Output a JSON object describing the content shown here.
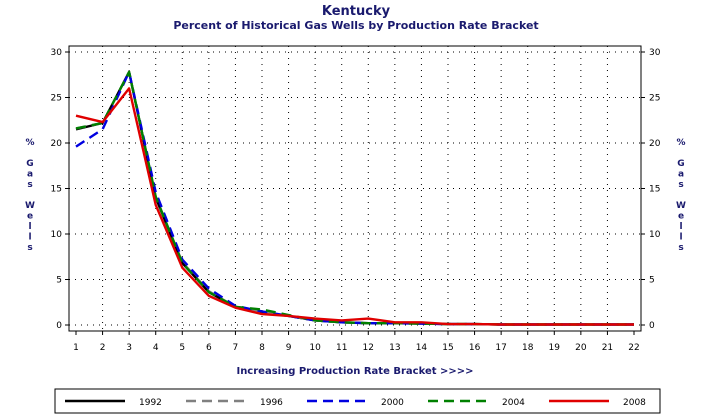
{
  "chart_data": {
    "type": "line",
    "title": "Kentucky",
    "subtitle": "Percent of Historical Gas Wells by Production Rate Bracket",
    "xlabel": "Increasing Production Rate Bracket >>>>",
    "ylabel": "% Gas Wells",
    "ylim": [
      0,
      30
    ],
    "yticks": [
      "0",
      "5",
      "10",
      "15",
      "20",
      "25",
      "30"
    ],
    "x": [
      "1",
      "2",
      "3",
      "4",
      "5",
      "6",
      "7",
      "8",
      "9",
      "10",
      "11",
      "12",
      "13",
      "14",
      "15",
      "16",
      "17",
      "18",
      "19",
      "20",
      "21",
      "22"
    ],
    "grid": true,
    "legend_position": "bottom",
    "series": [
      {
        "name": "1992",
        "color": "#000000",
        "dash": "solid",
        "values": [
          21.5,
          22.2,
          27.8,
          14.0,
          6.8,
          3.6,
          2.0,
          1.4,
          1.0,
          0.5,
          0.3,
          0.2,
          0.2,
          0.15,
          0.1,
          0.1,
          0.05,
          0.05,
          0.05,
          0.05,
          0.05,
          0.05
        ]
      },
      {
        "name": "1996",
        "color": "#808080",
        "dash": "dashed",
        "values": [
          21.6,
          22.2,
          27.8,
          14.1,
          6.9,
          3.7,
          2.0,
          1.4,
          1.0,
          0.5,
          0.3,
          0.2,
          0.2,
          0.15,
          0.1,
          0.1,
          0.05,
          0.05,
          0.05,
          0.05,
          0.05,
          0.05
        ]
      },
      {
        "name": "2000",
        "color": "#0000e0",
        "dash": "dashed",
        "values": [
          19.6,
          21.5,
          27.8,
          14.6,
          7.2,
          4.0,
          2.1,
          1.5,
          1.0,
          0.5,
          0.3,
          0.2,
          0.2,
          0.15,
          0.1,
          0.1,
          0.05,
          0.05,
          0.05,
          0.05,
          0.05,
          0.05
        ]
      },
      {
        "name": "2004",
        "color": "#008000",
        "dash": "dashed",
        "values": [
          21.6,
          22.2,
          27.8,
          14.1,
          6.8,
          3.6,
          2.0,
          1.7,
          1.1,
          0.5,
          0.3,
          0.2,
          0.2,
          0.15,
          0.1,
          0.1,
          0.05,
          0.05,
          0.05,
          0.05,
          0.05,
          0.05
        ]
      },
      {
        "name": "2008",
        "color": "#e00000",
        "dash": "solid",
        "values": [
          23.0,
          22.3,
          26.0,
          13.2,
          6.3,
          3.2,
          1.9,
          1.2,
          1.0,
          0.7,
          0.5,
          0.7,
          0.3,
          0.3,
          0.1,
          0.1,
          0.05,
          0.05,
          0.05,
          0.05,
          0.05,
          0.05
        ]
      }
    ]
  }
}
